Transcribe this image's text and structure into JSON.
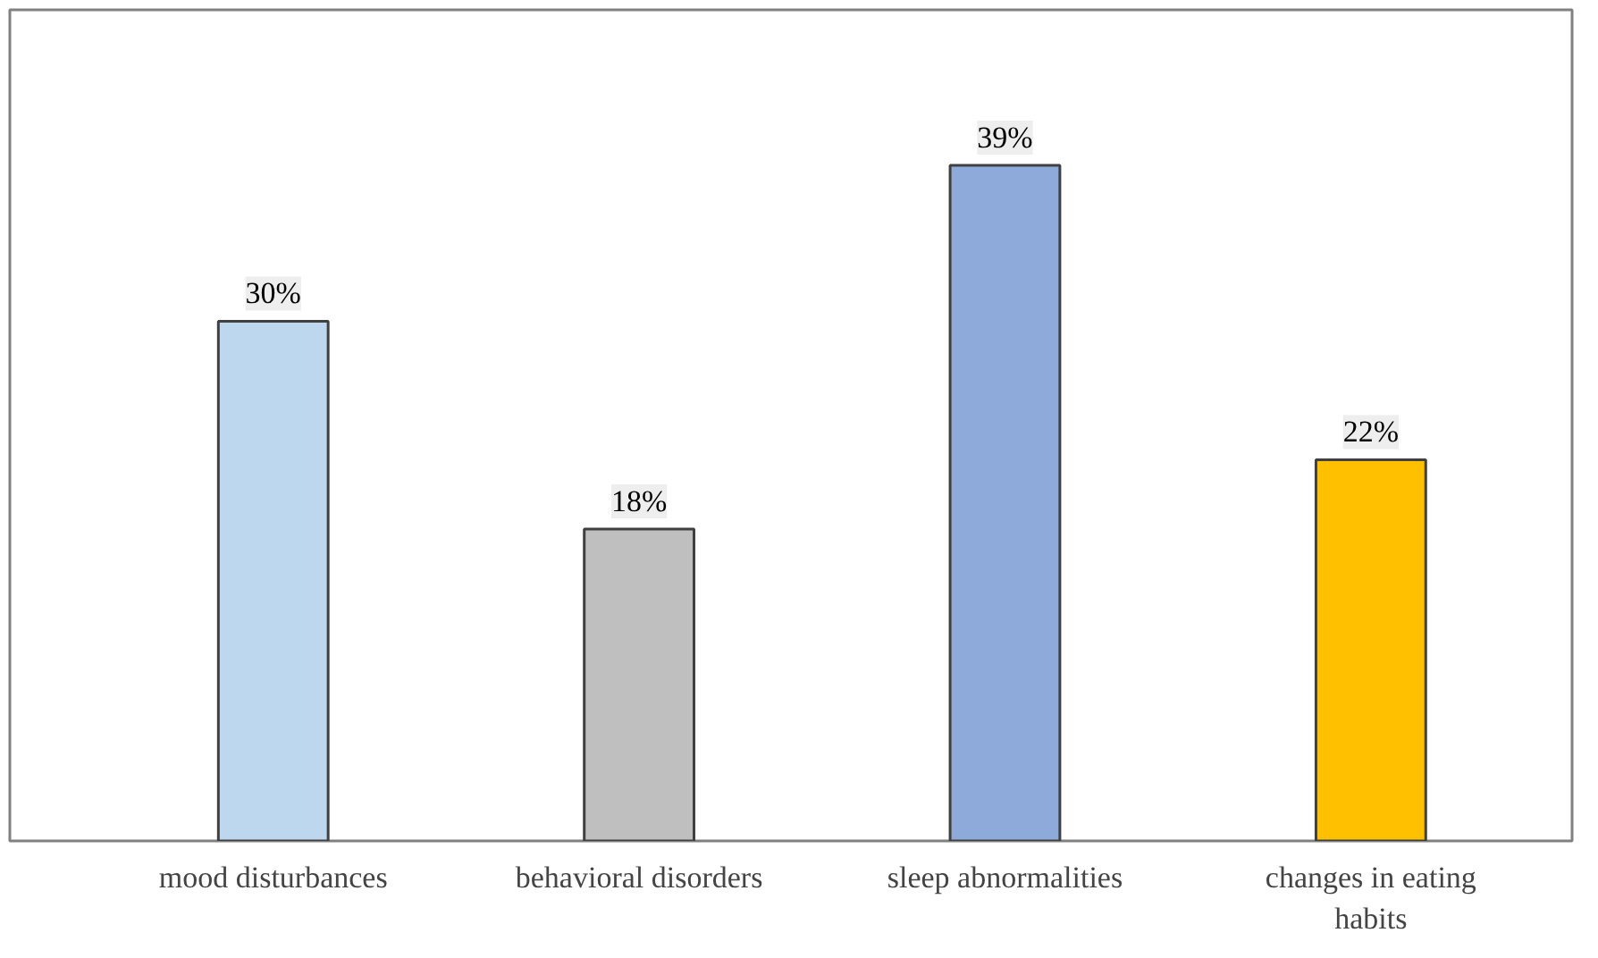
{
  "chart_data": {
    "type": "bar",
    "categories": [
      "mood disturbances",
      "behavioral disorders",
      "sleep abnormalities",
      "changes in eating habits"
    ],
    "values": [
      30,
      18,
      39,
      22
    ],
    "colors": [
      "#bdd7ee",
      "#bfbfbf",
      "#8eaadb",
      "#ffc000"
    ],
    "value_labels": [
      "30%",
      "18%",
      "39%",
      "22%"
    ],
    "grid": false
  }
}
